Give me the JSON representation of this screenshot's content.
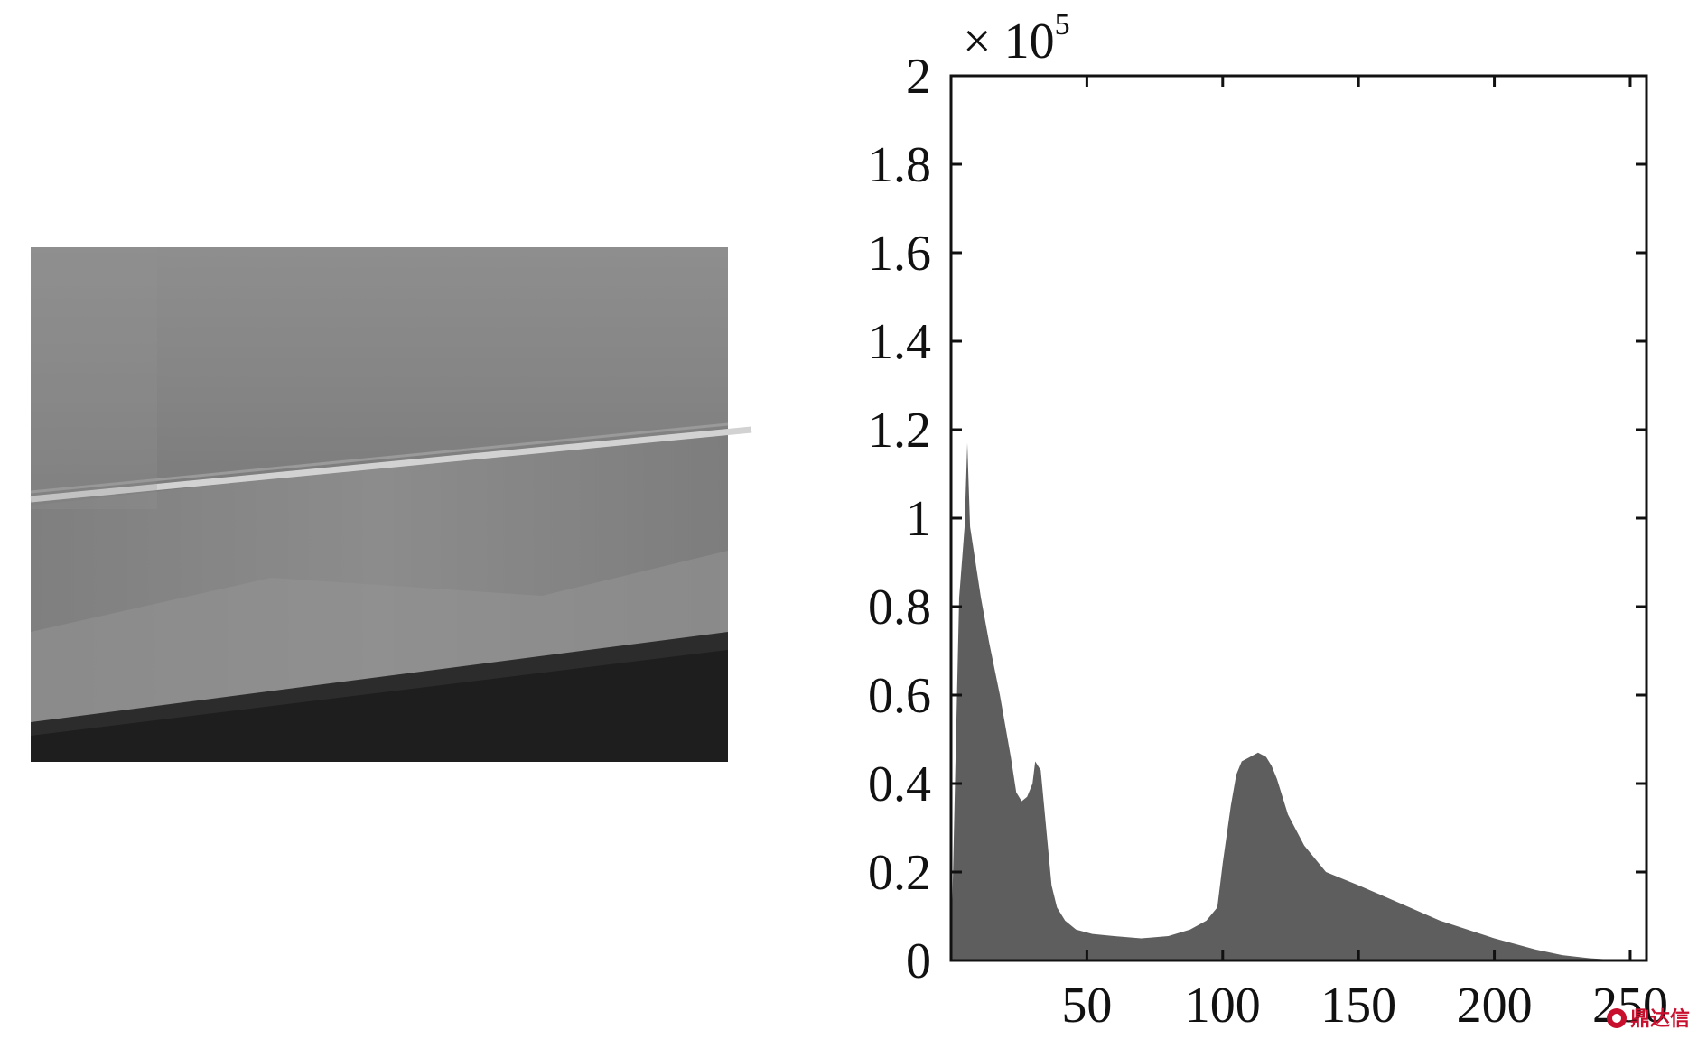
{
  "chart_data": {
    "type": "area",
    "title": "",
    "xlabel": "",
    "ylabel": "",
    "xlim": [
      0,
      256
    ],
    "ylim": [
      0,
      2
    ],
    "y_multiplier": {
      "base": "× 10",
      "exponent": "5"
    },
    "x_ticks": [
      50,
      100,
      150,
      200,
      250
    ],
    "x_tick_labels": [
      "50",
      "100",
      "150",
      "200",
      "250"
    ],
    "y_ticks": [
      0,
      0.2,
      0.4,
      0.6,
      0.8,
      1,
      1.2,
      1.4,
      1.6,
      1.8,
      2
    ],
    "y_tick_labels": [
      "0",
      "0.2",
      "0.4",
      "0.6",
      "0.8",
      "1",
      "1.2",
      "1.4",
      "1.6",
      "1.8",
      "2"
    ],
    "grid": false,
    "fill_color": "#5e5e5e",
    "series": [
      {
        "x": [
          0,
          3,
          5,
          6,
          7,
          9,
          11,
          14,
          18,
          22,
          24,
          26,
          28,
          30,
          31,
          33,
          35,
          37,
          39,
          42,
          46,
          52,
          60,
          70,
          80,
          88,
          94,
          98,
          100,
          103,
          105,
          107,
          110,
          113,
          116,
          118,
          120,
          124,
          130,
          138,
          150,
          165,
          180,
          200,
          215,
          225,
          235,
          245,
          256
        ],
        "y": [
          0,
          0.82,
          0.98,
          1.17,
          0.98,
          0.9,
          0.82,
          0.72,
          0.6,
          0.46,
          0.38,
          0.36,
          0.37,
          0.4,
          0.45,
          0.43,
          0.3,
          0.17,
          0.12,
          0.09,
          0.07,
          0.06,
          0.055,
          0.05,
          0.055,
          0.07,
          0.09,
          0.12,
          0.22,
          0.35,
          0.42,
          0.45,
          0.46,
          0.47,
          0.46,
          0.44,
          0.41,
          0.33,
          0.26,
          0.2,
          0.17,
          0.13,
          0.09,
          0.05,
          0.025,
          0.012,
          0.005,
          0.001,
          0
        ]
      }
    ]
  },
  "watermark": {
    "text": "鼎达信",
    "icon": "watermark-logo-icon",
    "color": "#c8102e"
  }
}
